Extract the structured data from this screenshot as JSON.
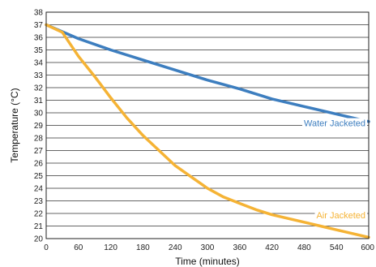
{
  "chart_data": {
    "type": "line",
    "title": "",
    "xlabel": "Time (minutes)",
    "ylabel": "Temperature (°C)",
    "xlim": [
      0,
      600
    ],
    "ylim": [
      20,
      38
    ],
    "x_ticks": [
      "0",
      "60",
      "120",
      "180",
      "240",
      "300",
      "360",
      "420",
      "480",
      "540",
      "600"
    ],
    "y_ticks": [
      "20",
      "21",
      "22",
      "23",
      "24",
      "25",
      "26",
      "27",
      "28",
      "29",
      "30",
      "31",
      "32",
      "33",
      "34",
      "35",
      "36",
      "37",
      "38"
    ],
    "grid": "horizontal",
    "series": [
      {
        "name": "Water Jacketed",
        "color": "#3d7ebf",
        "x": [
          0,
          60,
          120,
          180,
          240,
          300,
          360,
          420,
          480,
          540,
          600
        ],
        "y": [
          37.0,
          35.9,
          35.0,
          34.2,
          33.4,
          32.6,
          31.9,
          31.1,
          30.5,
          29.9,
          29.3
        ]
      },
      {
        "name": "Air Jacketed",
        "color": "#f5b335",
        "x": [
          0,
          30,
          60,
          90,
          120,
          150,
          180,
          210,
          240,
          270,
          300,
          330,
          360,
          390,
          420,
          450,
          480,
          510,
          540,
          570,
          600
        ],
        "y": [
          37.0,
          36.4,
          34.5,
          32.9,
          31.2,
          29.6,
          28.2,
          27.0,
          25.8,
          24.9,
          24.0,
          23.3,
          22.8,
          22.3,
          21.9,
          21.6,
          21.3,
          21.0,
          20.7,
          20.4,
          20.1
        ]
      }
    ]
  }
}
